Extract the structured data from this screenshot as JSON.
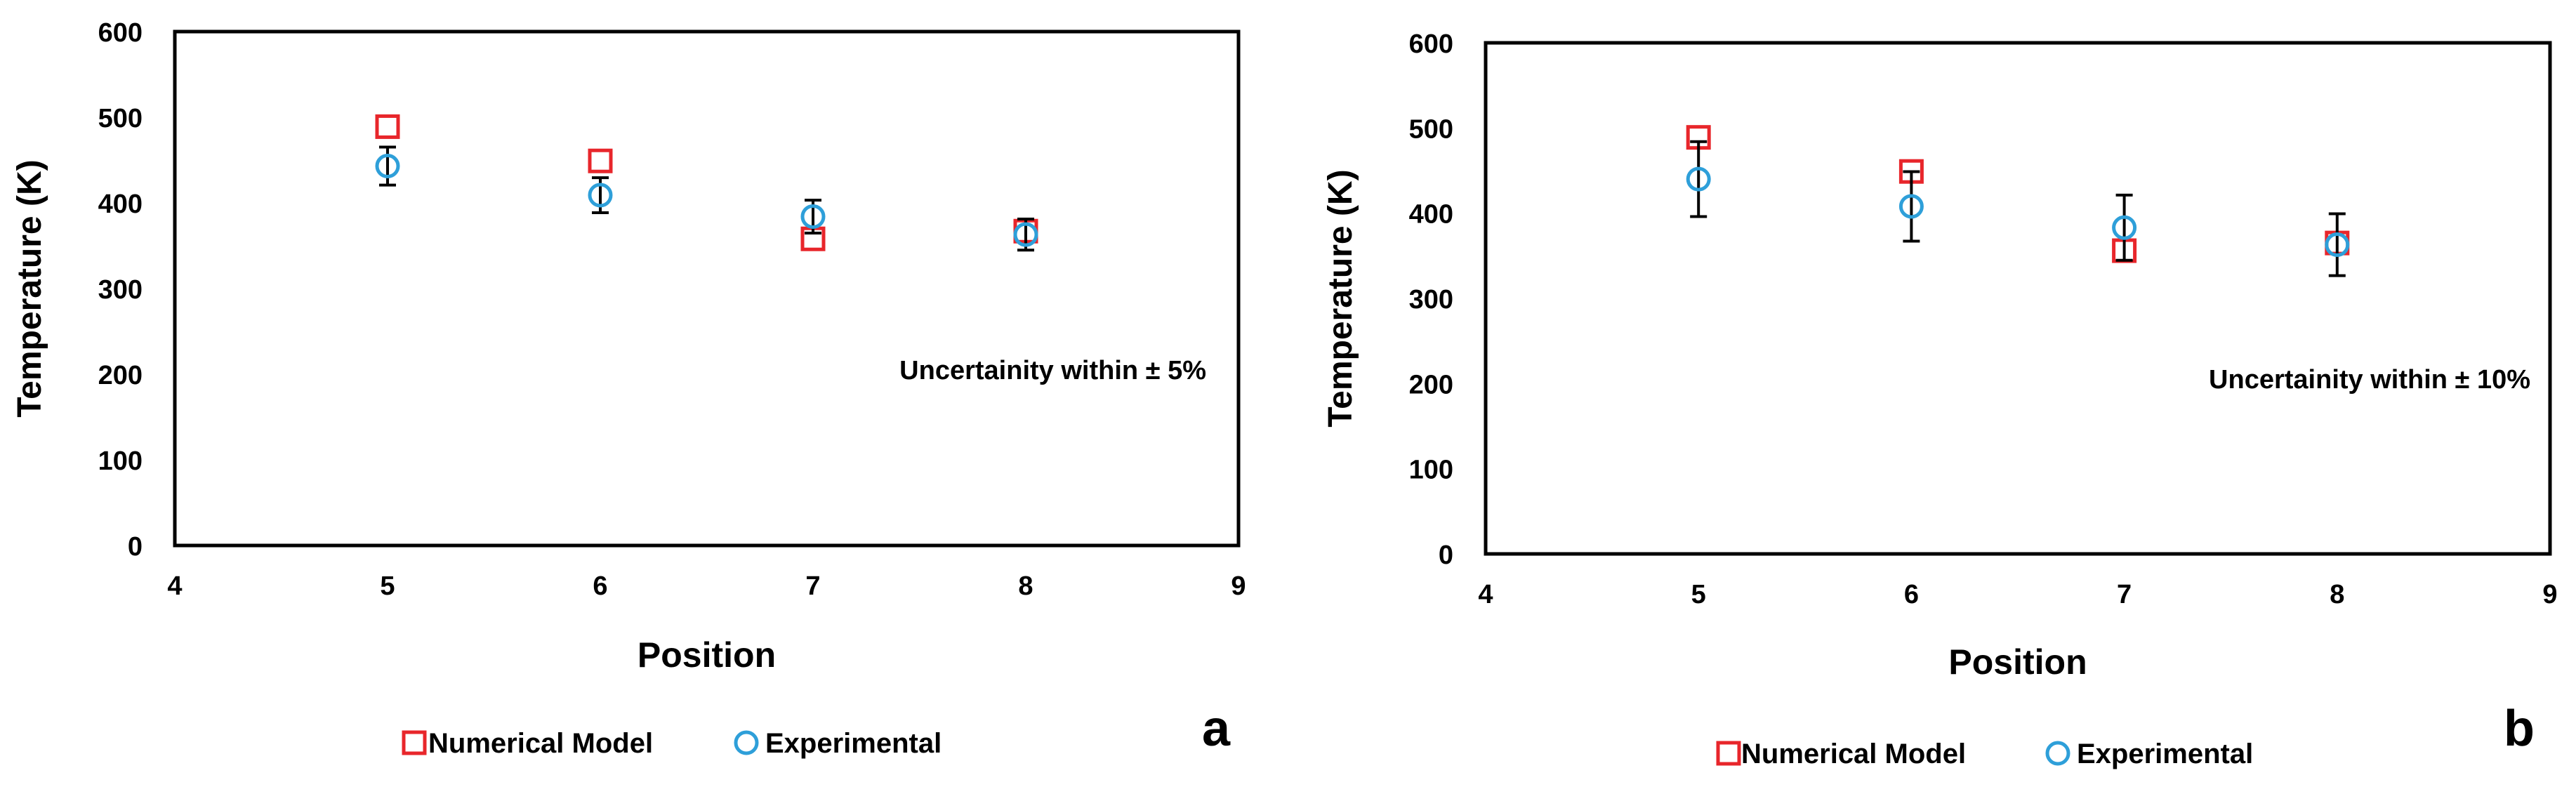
{
  "chart_data": [
    {
      "type": "scatter",
      "panel_label": "a",
      "xlabel": "Position",
      "ylabel": "Temperature (K)",
      "xlim": [
        4,
        9
      ],
      "ylim": [
        0,
        600
      ],
      "xticks": [
        4,
        5,
        6,
        7,
        8,
        9
      ],
      "yticks": [
        0,
        100,
        200,
        300,
        400,
        500,
        600
      ],
      "grid": false,
      "legend_position": "bottom",
      "annotation": "Uncertainity within ± 5%",
      "series": [
        {
          "name": "Numerical Model",
          "marker": "square",
          "color": "#e8262b",
          "x": [
            5,
            6,
            7,
            8
          ],
          "y": [
            489,
            449,
            358,
            367
          ]
        },
        {
          "name": "Experimental",
          "marker": "circle",
          "color": "#2e9fd9",
          "x": [
            5,
            6,
            7,
            8
          ],
          "y": [
            443,
            409,
            384,
            363
          ],
          "error_pct": 5
        }
      ]
    },
    {
      "type": "scatter",
      "panel_label": "b",
      "xlabel": "Position",
      "ylabel": "Temperature (K)",
      "xlim": [
        4,
        9
      ],
      "ylim": [
        0,
        600
      ],
      "xticks": [
        4,
        5,
        6,
        7,
        8,
        9
      ],
      "yticks": [
        0,
        100,
        200,
        300,
        400,
        500,
        600
      ],
      "grid": false,
      "legend_position": "bottom",
      "annotation": "Uncertainity within ± 10%",
      "series": [
        {
          "name": "Numerical Model",
          "marker": "square",
          "color": "#e8262b",
          "x": [
            5,
            6,
            7,
            8
          ],
          "y": [
            489,
            449,
            356,
            365
          ]
        },
        {
          "name": "Experimental",
          "marker": "circle",
          "color": "#2e9fd9",
          "x": [
            5,
            6,
            7,
            8
          ],
          "y": [
            440,
            408,
            383,
            363
          ],
          "error_pct": 10
        }
      ]
    }
  ]
}
